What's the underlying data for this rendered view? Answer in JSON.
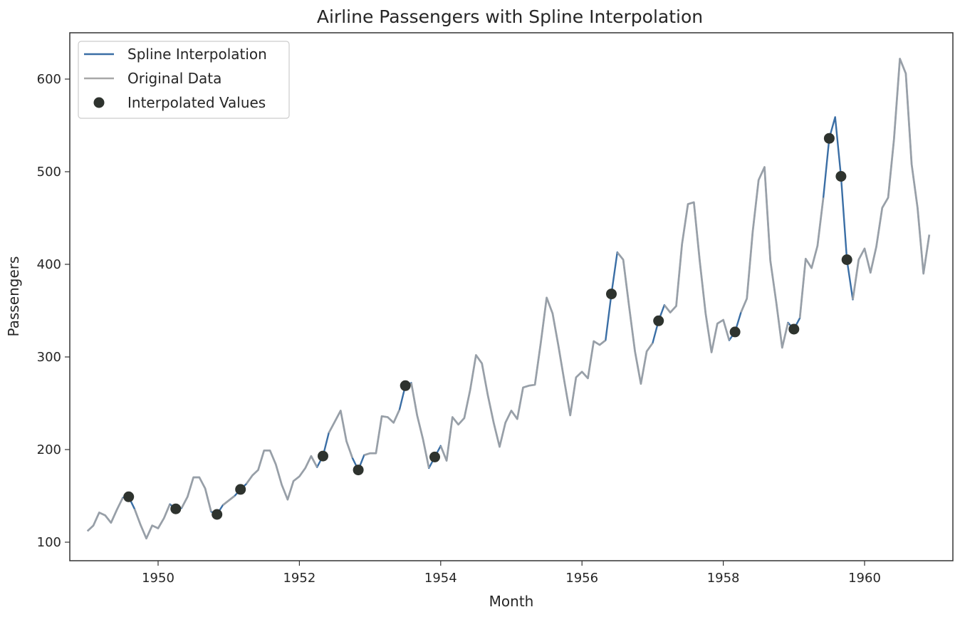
{
  "chart_data": {
    "type": "line",
    "title": "Airline Passengers with Spline Interpolation",
    "xlabel": "Month",
    "ylabel": "Passengers",
    "xlim": [
      "1948-10",
      "1961-04"
    ],
    "ylim": [
      80,
      650
    ],
    "x_ticks": [
      "1950",
      "1952",
      "1954",
      "1956",
      "1958",
      "1960"
    ],
    "y_ticks": [
      "100",
      "200",
      "300",
      "400",
      "500",
      "600"
    ],
    "grid": false,
    "legend": {
      "placement": "upper-left",
      "entries": [
        "Spline Interpolation",
        "Original Data",
        "Interpolated Values"
      ]
    },
    "colors": {
      "spline": "#3a6ea5",
      "original": "#a8a8a8",
      "points": "#2e332e"
    },
    "months": [
      "1949-01",
      "1949-02",
      "1949-03",
      "1949-04",
      "1949-05",
      "1949-06",
      "1949-07",
      "1949-08",
      "1949-09",
      "1949-10",
      "1949-11",
      "1949-12",
      "1950-01",
      "1950-02",
      "1950-03",
      "1950-04",
      "1950-05",
      "1950-06",
      "1950-07",
      "1950-08",
      "1950-09",
      "1950-10",
      "1950-11",
      "1950-12",
      "1951-01",
      "1951-02",
      "1951-03",
      "1951-04",
      "1951-05",
      "1951-06",
      "1951-07",
      "1951-08",
      "1951-09",
      "1951-10",
      "1951-11",
      "1951-12",
      "1952-01",
      "1952-02",
      "1952-03",
      "1952-04",
      "1952-05",
      "1952-06",
      "1952-07",
      "1952-08",
      "1952-09",
      "1952-10",
      "1952-11",
      "1952-12",
      "1953-01",
      "1953-02",
      "1953-03",
      "1953-04",
      "1953-05",
      "1953-06",
      "1953-07",
      "1953-08",
      "1953-09",
      "1953-10",
      "1953-11",
      "1953-12",
      "1954-01",
      "1954-02",
      "1954-03",
      "1954-04",
      "1954-05",
      "1954-06",
      "1954-07",
      "1954-08",
      "1954-09",
      "1954-10",
      "1954-11",
      "1954-12",
      "1955-01",
      "1955-02",
      "1955-03",
      "1955-04",
      "1955-05",
      "1955-06",
      "1955-07",
      "1955-08",
      "1955-09",
      "1955-10",
      "1955-11",
      "1955-12",
      "1956-01",
      "1956-02",
      "1956-03",
      "1956-04",
      "1956-05",
      "1956-06",
      "1956-07",
      "1956-08",
      "1956-09",
      "1956-10",
      "1956-11",
      "1956-12",
      "1957-01",
      "1957-02",
      "1957-03",
      "1957-04",
      "1957-05",
      "1957-06",
      "1957-07",
      "1957-08",
      "1957-09",
      "1957-10",
      "1957-11",
      "1957-12",
      "1958-01",
      "1958-02",
      "1958-03",
      "1958-04",
      "1958-05",
      "1958-06",
      "1958-07",
      "1958-08",
      "1958-09",
      "1958-10",
      "1958-11",
      "1958-12",
      "1959-01",
      "1959-02",
      "1959-03",
      "1959-04",
      "1959-05",
      "1959-06",
      "1959-07",
      "1959-08",
      "1959-09",
      "1959-10",
      "1959-11",
      "1959-12",
      "1960-01",
      "1960-02",
      "1960-03",
      "1960-04",
      "1960-05",
      "1960-06",
      "1960-07",
      "1960-08",
      "1960-09",
      "1960-10",
      "1960-11",
      "1960-12"
    ],
    "series": [
      {
        "name": "Spline Interpolation",
        "values": [
          112,
          118,
          132,
          129,
          121,
          135,
          148,
          149,
          136,
          119,
          104,
          118,
          115,
          126,
          141,
          136,
          137,
          149,
          170,
          170,
          158,
          133,
          130,
          140,
          145,
          150,
          157,
          163,
          172,
          178,
          199,
          199,
          184,
          162,
          146,
          166,
          171,
          180,
          193,
          181,
          193,
          218,
          230,
          242,
          209,
          191,
          178,
          194,
          196,
          196,
          236,
          235,
          229,
          243,
          269,
          272,
          237,
          211,
          180,
          192,
          204,
          188,
          235,
          227,
          234,
          264,
          302,
          293,
          259,
          229,
          203,
          229,
          242,
          233,
          267,
          269,
          270,
          315,
          364,
          347,
          312,
          274,
          237,
          278,
          284,
          277,
          317,
          313,
          318,
          368,
          413,
          405,
          355,
          306,
          271,
          306,
          315,
          339,
          356,
          348,
          355,
          422,
          465,
          467,
          404,
          347,
          305,
          336,
          340,
          318,
          327,
          348,
          363,
          435,
          491,
          505,
          404,
          359,
          310,
          337,
          330,
          342,
          406,
          396,
          420,
          472,
          536,
          559,
          495,
          405,
          362,
          405,
          417,
          391,
          419,
          461,
          472,
          535,
          622,
          606,
          508,
          461,
          390,
          432
        ]
      },
      {
        "name": "Original Data",
        "values": [
          112,
          118,
          132,
          129,
          121,
          135,
          148,
          null,
          136,
          119,
          104,
          118,
          115,
          126,
          141,
          null,
          137,
          149,
          170,
          170,
          158,
          133,
          null,
          140,
          145,
          150,
          null,
          163,
          172,
          178,
          199,
          199,
          184,
          162,
          146,
          166,
          171,
          180,
          193,
          181,
          null,
          218,
          230,
          242,
          209,
          191,
          null,
          194,
          196,
          196,
          236,
          235,
          229,
          243,
          null,
          272,
          237,
          211,
          180,
          null,
          204,
          188,
          235,
          227,
          234,
          264,
          302,
          293,
          259,
          229,
          203,
          229,
          242,
          233,
          267,
          269,
          270,
          315,
          364,
          347,
          312,
          274,
          237,
          278,
          284,
          277,
          317,
          313,
          318,
          null,
          413,
          405,
          355,
          306,
          271,
          306,
          315,
          null,
          356,
          348,
          355,
          422,
          465,
          467,
          404,
          347,
          305,
          336,
          340,
          318,
          null,
          348,
          363,
          435,
          491,
          505,
          404,
          359,
          310,
          337,
          null,
          342,
          406,
          396,
          420,
          472,
          null,
          559,
          null,
          null,
          362,
          405,
          417,
          391,
          419,
          461,
          472,
          535,
          622,
          606,
          508,
          461,
          390,
          432
        ]
      }
    ],
    "interpolated_points": [
      {
        "x": "1949-08",
        "y": 149
      },
      {
        "x": "1950-04",
        "y": 136
      },
      {
        "x": "1950-11",
        "y": 130
      },
      {
        "x": "1951-03",
        "y": 157
      },
      {
        "x": "1952-05",
        "y": 193
      },
      {
        "x": "1952-11",
        "y": 178
      },
      {
        "x": "1953-07",
        "y": 269
      },
      {
        "x": "1953-12",
        "y": 192
      },
      {
        "x": "1956-06",
        "y": 368
      },
      {
        "x": "1957-02",
        "y": 339
      },
      {
        "x": "1958-03",
        "y": 327
      },
      {
        "x": "1959-01",
        "y": 330
      },
      {
        "x": "1959-07",
        "y": 536
      },
      {
        "x": "1959-09",
        "y": 495
      },
      {
        "x": "1959-10",
        "y": 405
      }
    ]
  }
}
